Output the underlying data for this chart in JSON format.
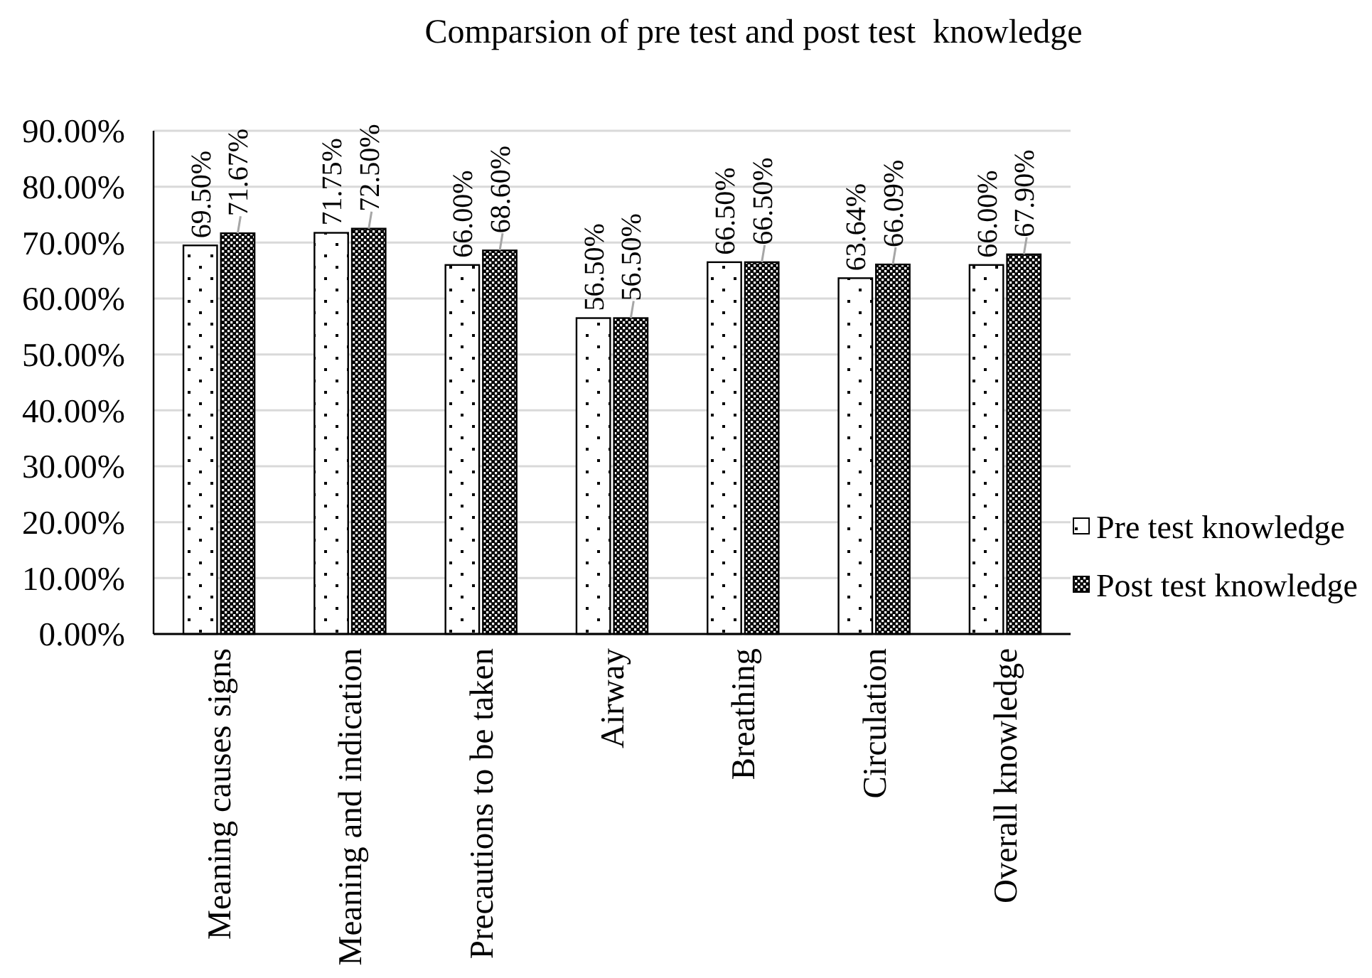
{
  "chart_data": {
    "type": "bar",
    "title": "Comparsion of pre test and post test  knowledge",
    "categories": [
      "Meaning causes signs",
      "Meaning and indication",
      "Precautions to be taken",
      "Airway",
      "Breathing",
      "Circulation",
      "Overall knowledge"
    ],
    "series": [
      {
        "name": "Pre test knowledge",
        "color": "#000000",
        "values": [
          69.5,
          71.75,
          66,
          56.5,
          66.5,
          63.64,
          66
        ],
        "value_labels": [
          "69.50%",
          "71.75%",
          "66.00%",
          "56.50%",
          "66.50%",
          "63.64%",
          "66.00%"
        ]
      },
      {
        "name": "Post test knowledge",
        "color": "#000000",
        "values": [
          71.67,
          72.5,
          68.6,
          56.5,
          66.5,
          66.09,
          67.9
        ],
        "value_labels": [
          "71.67%",
          "72.50%",
          "68.60%",
          "56.50%",
          "66.50%",
          "66.09%",
          "67.90%"
        ]
      }
    ],
    "ylim": [
      0,
      90
    ],
    "yticks": [
      {
        "value": 0,
        "label": "0.00%"
      },
      {
        "value": 10,
        "label": "10.00%"
      },
      {
        "value": 20,
        "label": "20.00%"
      },
      {
        "value": 30,
        "label": "30.00%"
      },
      {
        "value": 40,
        "label": "40.00%"
      },
      {
        "value": 50,
        "label": "50.00%"
      },
      {
        "value": 60,
        "label": "60.00%"
      },
      {
        "value": 70,
        "label": "70.00%"
      },
      {
        "value": 80,
        "label": "80.00%"
      },
      {
        "value": 90,
        "label": "90.00%"
      }
    ],
    "grid": "y",
    "legend": "bottom right"
  }
}
